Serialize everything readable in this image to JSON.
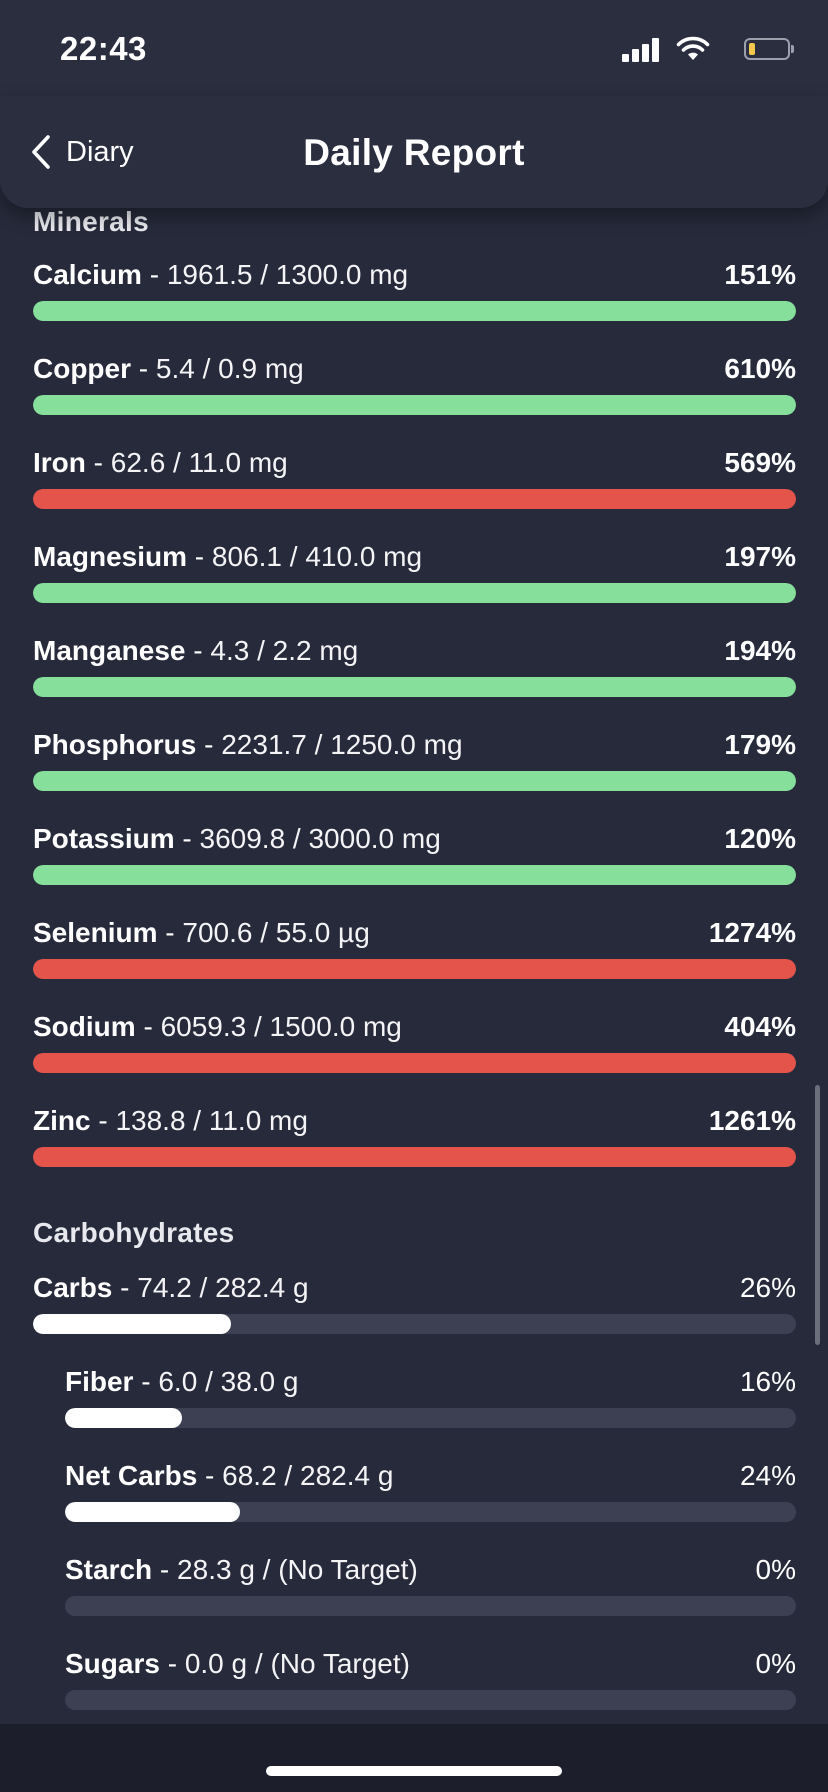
{
  "status_bar": {
    "time": "22:43"
  },
  "header": {
    "back_label": "Diary",
    "title": "Daily Report"
  },
  "colors": {
    "ok": "#86df9b",
    "over": "#e5544b",
    "neutral": "#ffffff",
    "track": "#3c4052"
  },
  "minerals": {
    "title": "Minerals",
    "items": [
      {
        "name": "Calcium",
        "amount": "1961.5 / 1300.0 mg",
        "percent": "151%",
        "fill": 1.0,
        "status": "ok"
      },
      {
        "name": "Copper",
        "amount": "5.4 / 0.9 mg",
        "percent": "610%",
        "fill": 1.0,
        "status": "ok"
      },
      {
        "name": "Iron",
        "amount": "62.6 / 11.0 mg",
        "percent": "569%",
        "fill": 1.0,
        "status": "over"
      },
      {
        "name": "Magnesium",
        "amount": "806.1 / 410.0 mg",
        "percent": "197%",
        "fill": 1.0,
        "status": "ok"
      },
      {
        "name": "Manganese",
        "amount": "4.3 / 2.2 mg",
        "percent": "194%",
        "fill": 1.0,
        "status": "ok"
      },
      {
        "name": "Phosphorus",
        "amount": "2231.7 / 1250.0 mg",
        "percent": "179%",
        "fill": 1.0,
        "status": "ok"
      },
      {
        "name": "Potassium",
        "amount": "3609.8 / 3000.0 mg",
        "percent": "120%",
        "fill": 1.0,
        "status": "ok"
      },
      {
        "name": "Selenium",
        "amount": "700.6 / 55.0 µg",
        "percent": "1274%",
        "fill": 1.0,
        "status": "over"
      },
      {
        "name": "Sodium",
        "amount": "6059.3 / 1500.0 mg",
        "percent": "404%",
        "fill": 1.0,
        "status": "over"
      },
      {
        "name": "Zinc",
        "amount": "138.8 / 11.0 mg",
        "percent": "1261%",
        "fill": 1.0,
        "status": "over"
      }
    ]
  },
  "carbohydrates": {
    "title": "Carbohydrates",
    "items": [
      {
        "name": "Carbs",
        "amount": "74.2 / 282.4 g",
        "percent": "26%",
        "fill": 0.26,
        "status": "neutral",
        "indent": false
      },
      {
        "name": "Fiber",
        "amount": "6.0 / 38.0 g",
        "percent": "16%",
        "fill": 0.16,
        "status": "neutral",
        "indent": true
      },
      {
        "name": "Net Carbs",
        "amount": "68.2 / 282.4 g",
        "percent": "24%",
        "fill": 0.24,
        "status": "neutral",
        "indent": true
      },
      {
        "name": "Starch",
        "amount": "28.3 g / (No Target)",
        "percent": "0%",
        "fill": 0,
        "status": "neutral",
        "indent": true
      },
      {
        "name": "Sugars",
        "amount": "0.0 g / (No Target)",
        "percent": "0%",
        "fill": 0,
        "status": "neutral",
        "indent": true
      }
    ]
  }
}
